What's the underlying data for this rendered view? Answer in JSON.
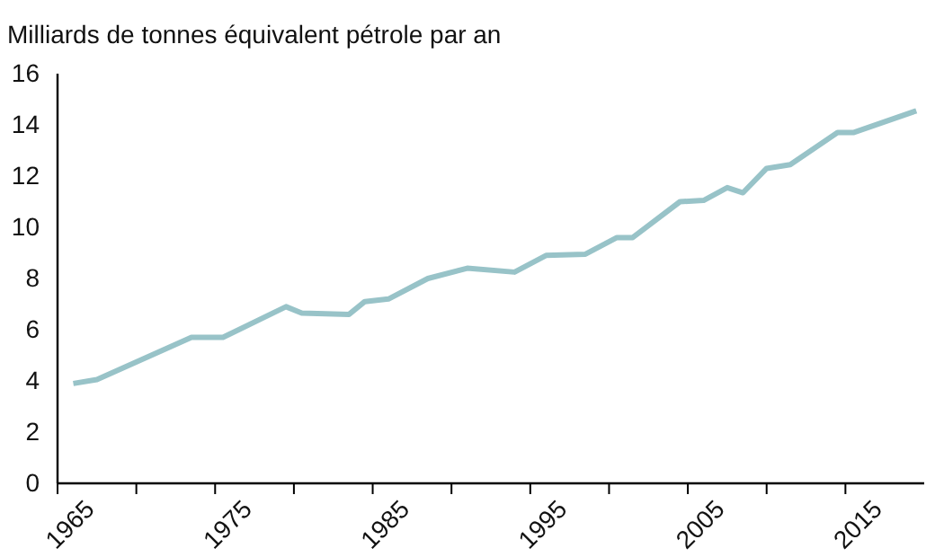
{
  "chart_data": {
    "type": "line",
    "ylabel": "Milliards de tonnes équivalent pétrole par an",
    "x": [
      1966,
      1967.5,
      1973.5,
      1975.5,
      1979.5,
      1980.5,
      1983.5,
      1984.5,
      1986,
      1988.5,
      1991,
      1994,
      1996,
      1998.5,
      2000.5,
      2001.5,
      2004.5,
      2006,
      2007.5,
      2008.5,
      2010,
      2011.5,
      2014.5,
      2015.5,
      2019.5
    ],
    "series": [
      {
        "color": "#98c3c8",
        "values": [
          3.9,
          4.05,
          5.7,
          5.7,
          6.9,
          6.65,
          6.6,
          7.1,
          7.2,
          8.0,
          8.4,
          8.25,
          8.9,
          8.95,
          9.6,
          9.6,
          11.0,
          11.05,
          11.55,
          11.35,
          12.3,
          12.45,
          13.7,
          13.7,
          14.55
        ]
      }
    ],
    "xlim": [
      1965,
      2020
    ],
    "xticks": [
      1965,
      {
        "value": 1970,
        "label": null
      },
      1975,
      {
        "value": 1980,
        "label": null
      },
      1985,
      {
        "value": 1990,
        "label": null
      },
      1995,
      {
        "value": 2000,
        "label": null
      },
      2005,
      {
        "value": 2010,
        "label": null
      },
      2015
    ],
    "ylim": [
      0,
      16
    ],
    "yticks": [
      0,
      2,
      4,
      6,
      8,
      10,
      12,
      14,
      16
    ],
    "grid": false,
    "marker": "none",
    "line_style": "solid"
  }
}
